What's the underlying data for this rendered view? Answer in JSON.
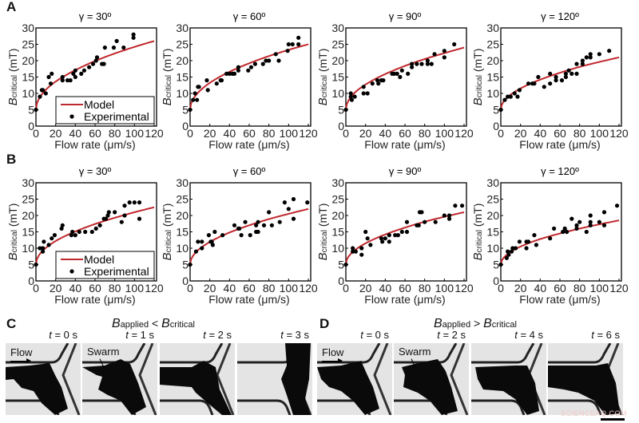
{
  "panel_labels": {
    "A": "A",
    "B": "B",
    "C": "C",
    "D": "D"
  },
  "colors": {
    "model": "#c0282d",
    "experimental": "#000000"
  },
  "chart_data": [
    {
      "panel": "A",
      "type": "scatter+line",
      "title": "γ = 30º",
      "xlabel": "Flow rate (μm/s)",
      "ylabel_main": "B",
      "ylabel_sub": "critical",
      "ylabel_unit": " (mT)",
      "xlim": [
        0,
        120
      ],
      "ylim": [
        0,
        30
      ],
      "xticks": [
        0,
        20,
        40,
        60,
        80,
        100,
        120
      ],
      "yticks": [
        0,
        5,
        10,
        15,
        20,
        25,
        30
      ],
      "grid": false,
      "legend": {
        "position": "bottom-right",
        "entries": [
          "Model",
          "Experimental"
        ]
      },
      "model": {
        "x": [
          0,
          2,
          10,
          20,
          40,
          60,
          80,
          100,
          120
        ],
        "y": [
          5,
          7.7,
          11.1,
          13.6,
          17.1,
          19.9,
          22.2,
          24.2,
          26.0
        ]
      },
      "experimental": [
        [
          0,
          5
        ],
        [
          4,
          9
        ],
        [
          6,
          11
        ],
        [
          7,
          11
        ],
        [
          10,
          10
        ],
        [
          13,
          15
        ],
        [
          15,
          13
        ],
        [
          16,
          16
        ],
        [
          27,
          15
        ],
        [
          27,
          14
        ],
        [
          32,
          14
        ],
        [
          35,
          14
        ],
        [
          38,
          16
        ],
        [
          40,
          17
        ],
        [
          40,
          15
        ],
        [
          46,
          16
        ],
        [
          49,
          17
        ],
        [
          54,
          18
        ],
        [
          58,
          19
        ],
        [
          61,
          20
        ],
        [
          62,
          21
        ],
        [
          67,
          19
        ],
        [
          69,
          19
        ],
        [
          70,
          24
        ],
        [
          79,
          24
        ],
        [
          82,
          26
        ],
        [
          89,
          24
        ],
        [
          99,
          27
        ],
        [
          99,
          28
        ]
      ]
    },
    {
      "panel": "A",
      "type": "scatter+line",
      "title": "γ = 60º",
      "xlabel": "Flow rate (μm/s)",
      "ylabel_main": "B",
      "ylabel_sub": "critical",
      "ylabel_unit": " (mT)",
      "xlim": [
        0,
        120
      ],
      "ylim": [
        0,
        30
      ],
      "xticks": [
        0,
        20,
        40,
        60,
        80,
        100,
        120
      ],
      "yticks": [
        0,
        5,
        10,
        15,
        20,
        25,
        30
      ],
      "grid": false,
      "model": {
        "x": [
          0,
          2,
          10,
          20,
          40,
          60,
          80,
          100,
          120
        ],
        "y": [
          5,
          7.6,
          10.8,
          13.2,
          16.6,
          19.2,
          21.4,
          23.3,
          25.0
        ]
      },
      "experimental": [
        [
          0,
          5
        ],
        [
          3,
          8
        ],
        [
          5,
          10
        ],
        [
          7,
          8
        ],
        [
          8,
          12
        ],
        [
          9,
          12
        ],
        [
          17,
          14
        ],
        [
          18,
          11
        ],
        [
          27,
          13
        ],
        [
          31,
          14
        ],
        [
          32,
          14
        ],
        [
          37,
          16
        ],
        [
          40,
          16
        ],
        [
          43,
          16
        ],
        [
          45,
          16
        ],
        [
          49,
          17
        ],
        [
          49,
          18
        ],
        [
          59,
          17
        ],
        [
          62,
          18
        ],
        [
          66,
          19
        ],
        [
          74,
          19
        ],
        [
          77,
          20
        ],
        [
          80,
          20
        ],
        [
          87,
          22
        ],
        [
          90,
          20
        ],
        [
          99,
          23
        ],
        [
          100,
          25
        ],
        [
          104,
          25
        ],
        [
          110,
          25
        ],
        [
          110,
          27
        ]
      ]
    },
    {
      "panel": "A",
      "type": "scatter+line",
      "title": "γ = 90º",
      "xlabel": "Flow rate (μm/s)",
      "ylabel_main": "B",
      "ylabel_sub": "critical",
      "ylabel_unit": " (mT)",
      "xlim": [
        0,
        120
      ],
      "ylim": [
        0,
        30
      ],
      "xticks": [
        0,
        20,
        40,
        60,
        80,
        100,
        120
      ],
      "yticks": [
        0,
        5,
        10,
        15,
        20,
        25,
        30
      ],
      "grid": false,
      "model": {
        "x": [
          0,
          2,
          10,
          20,
          40,
          60,
          80,
          100,
          120
        ],
        "y": [
          5,
          7.4,
          10.5,
          12.7,
          15.9,
          18.4,
          20.5,
          22.3,
          24.0
        ]
      },
      "experimental": [
        [
          0,
          5
        ],
        [
          5,
          9
        ],
        [
          5,
          10
        ],
        [
          6,
          8
        ],
        [
          9,
          9
        ],
        [
          18,
          12
        ],
        [
          18,
          10
        ],
        [
          22,
          10
        ],
        [
          27,
          13
        ],
        [
          32,
          14
        ],
        [
          33,
          13
        ],
        [
          36,
          14
        ],
        [
          38,
          14
        ],
        [
          47,
          16
        ],
        [
          49,
          16
        ],
        [
          52,
          16
        ],
        [
          55,
          15
        ],
        [
          57,
          17
        ],
        [
          63,
          16
        ],
        [
          67,
          18
        ],
        [
          67,
          19
        ],
        [
          72,
          19
        ],
        [
          77,
          19
        ],
        [
          83,
          20
        ],
        [
          83,
          19
        ],
        [
          87,
          19
        ],
        [
          90,
          22
        ],
        [
          100,
          23
        ],
        [
          100,
          21
        ],
        [
          110,
          25
        ]
      ]
    },
    {
      "panel": "A",
      "type": "scatter+line",
      "title": "γ = 120º",
      "xlabel": "Flow rate (μm/s)",
      "ylabel_main": "B",
      "ylabel_sub": "critical",
      "ylabel_unit": " (mT)",
      "xlim": [
        0,
        120
      ],
      "ylim": [
        0,
        30
      ],
      "xticks": [
        0,
        20,
        40,
        60,
        80,
        100,
        120
      ],
      "yticks": [
        0,
        5,
        10,
        15,
        20,
        25,
        30
      ],
      "grid": false,
      "model": {
        "x": [
          0,
          2,
          10,
          20,
          40,
          60,
          80,
          100,
          120
        ],
        "y": [
          5,
          7.1,
          9.6,
          11.5,
          14.2,
          16.3,
          18.1,
          19.6,
          21.0
        ]
      },
      "experimental": [
        [
          0,
          5
        ],
        [
          4,
          8
        ],
        [
          7,
          9
        ],
        [
          10,
          9
        ],
        [
          14,
          10
        ],
        [
          17,
          9
        ],
        [
          19,
          11
        ],
        [
          28,
          13
        ],
        [
          32,
          13
        ],
        [
          34,
          13
        ],
        [
          38,
          15
        ],
        [
          44,
          12
        ],
        [
          50,
          13
        ],
        [
          50,
          16
        ],
        [
          56,
          14
        ],
        [
          56,
          15
        ],
        [
          62,
          14
        ],
        [
          66,
          15
        ],
        [
          66,
          16
        ],
        [
          69,
          17
        ],
        [
          72,
          16
        ],
        [
          77,
          16
        ],
        [
          77,
          19
        ],
        [
          83,
          19
        ],
        [
          83,
          20
        ],
        [
          87,
          21
        ],
        [
          91,
          21
        ],
        [
          91,
          22
        ],
        [
          100,
          22
        ],
        [
          110,
          23
        ]
      ]
    },
    {
      "panel": "B",
      "type": "scatter+line",
      "title": "γ = 30º",
      "xlabel": "Flow rate (μm/s)",
      "ylabel_main": "B",
      "ylabel_sub": "critical",
      "ylabel_unit": " (mT)",
      "xlim": [
        0,
        120
      ],
      "ylim": [
        0,
        30
      ],
      "xticks": [
        0,
        20,
        40,
        60,
        80,
        100,
        120
      ],
      "yticks": [
        0,
        5,
        10,
        15,
        20,
        25,
        30
      ],
      "grid": false,
      "legend": {
        "position": "bottom-right",
        "entries": [
          "Model",
          "Experimental"
        ]
      },
      "model": {
        "x": [
          0,
          2,
          10,
          20,
          40,
          60,
          80,
          100,
          120
        ],
        "y": [
          5,
          7.3,
          10.1,
          12.2,
          15.1,
          17.4,
          19.3,
          21.0,
          22.5
        ]
      },
      "experimental": [
        [
          0,
          5
        ],
        [
          4,
          10
        ],
        [
          7,
          9
        ],
        [
          7,
          10
        ],
        [
          8,
          12
        ],
        [
          13,
          11
        ],
        [
          16,
          13
        ],
        [
          19,
          14
        ],
        [
          26,
          16
        ],
        [
          27,
          17
        ],
        [
          36,
          14
        ],
        [
          37,
          15
        ],
        [
          40,
          14
        ],
        [
          44,
          15
        ],
        [
          50,
          15
        ],
        [
          57,
          15
        ],
        [
          61,
          16
        ],
        [
          65,
          17
        ],
        [
          69,
          19
        ],
        [
          71,
          19
        ],
        [
          73,
          20
        ],
        [
          74,
          21
        ],
        [
          80,
          21
        ],
        [
          87,
          18
        ],
        [
          90,
          20
        ],
        [
          90,
          23
        ],
        [
          95,
          24
        ],
        [
          100,
          24
        ],
        [
          105,
          24
        ],
        [
          105,
          19
        ]
      ]
    },
    {
      "panel": "B",
      "type": "scatter+line",
      "title": "γ = 60º",
      "xlabel": "Flow rate (μm/s)",
      "ylabel_main": "B",
      "ylabel_sub": "critical",
      "ylabel_unit": " (mT)",
      "xlim": [
        0,
        120
      ],
      "ylim": [
        0,
        30
      ],
      "xticks": [
        0,
        20,
        40,
        60,
        80,
        100,
        120
      ],
      "yticks": [
        0,
        5,
        10,
        15,
        20,
        25,
        30
      ],
      "grid": false,
      "model": {
        "x": [
          0,
          2,
          10,
          20,
          40,
          60,
          80,
          100,
          120
        ],
        "y": [
          5,
          7.2,
          9.9,
          11.9,
          14.8,
          17.0,
          18.9,
          20.5,
          22.0
        ]
      },
      "experimental": [
        [
          0,
          5
        ],
        [
          6,
          9
        ],
        [
          8,
          12
        ],
        [
          12,
          12
        ],
        [
          12,
          10
        ],
        [
          19,
          14
        ],
        [
          21,
          12
        ],
        [
          22,
          12
        ],
        [
          23,
          11
        ],
        [
          25,
          15
        ],
        [
          33,
          14
        ],
        [
          45,
          17
        ],
        [
          49,
          16
        ],
        [
          50,
          16
        ],
        [
          52,
          14
        ],
        [
          56,
          18
        ],
        [
          61,
          14
        ],
        [
          67,
          15
        ],
        [
          67,
          17
        ],
        [
          69,
          18
        ],
        [
          69,
          15
        ],
        [
          75,
          17
        ],
        [
          80,
          21
        ],
        [
          83,
          17
        ],
        [
          91,
          18
        ],
        [
          96,
          24
        ],
        [
          100,
          22
        ],
        [
          105,
          25
        ],
        [
          105,
          19
        ],
        [
          119,
          24
        ]
      ]
    },
    {
      "panel": "B",
      "type": "scatter+line",
      "title": "γ = 90º",
      "xlabel": "Flow rate (μm/s)",
      "ylabel_main": "B",
      "ylabel_sub": "critical",
      "ylabel_unit": " (mT)",
      "xlim": [
        0,
        120
      ],
      "ylim": [
        0,
        30
      ],
      "xticks": [
        0,
        20,
        40,
        60,
        80,
        100,
        120
      ],
      "yticks": [
        0,
        5,
        10,
        15,
        20,
        25,
        30
      ],
      "grid": false,
      "model": {
        "x": [
          0,
          2,
          10,
          20,
          40,
          60,
          80,
          100,
          120
        ],
        "y": [
          5,
          7.1,
          9.6,
          11.5,
          14.2,
          16.3,
          18.1,
          19.6,
          21.0
        ]
      },
      "experimental": [
        [
          0,
          5
        ],
        [
          7,
          10
        ],
        [
          7,
          9
        ],
        [
          10,
          9
        ],
        [
          16,
          10
        ],
        [
          16,
          8
        ],
        [
          20,
          15
        ],
        [
          22,
          13
        ],
        [
          25,
          11
        ],
        [
          36,
          13
        ],
        [
          37,
          12
        ],
        [
          40,
          13
        ],
        [
          44,
          14
        ],
        [
          44,
          12
        ],
        [
          50,
          14
        ],
        [
          53,
          14
        ],
        [
          57,
          15
        ],
        [
          62,
          18
        ],
        [
          62,
          15
        ],
        [
          72,
          17
        ],
        [
          74,
          17
        ],
        [
          75,
          21
        ],
        [
          77,
          21
        ],
        [
          80,
          18
        ],
        [
          91,
          18
        ],
        [
          100,
          20
        ],
        [
          105,
          20
        ],
        [
          105,
          19
        ],
        [
          111,
          23
        ],
        [
          118,
          23
        ]
      ]
    },
    {
      "panel": "B",
      "type": "scatter+line",
      "title": "γ = 120º",
      "xlabel": "Flow rate (μm/s)",
      "ylabel_main": "B",
      "ylabel_sub": "critical",
      "ylabel_unit": " (mT)",
      "xlim": [
        0,
        120
      ],
      "ylim": [
        0,
        30
      ],
      "xticks": [
        0,
        20,
        40,
        60,
        80,
        100,
        120
      ],
      "yticks": [
        0,
        5,
        10,
        15,
        20,
        25,
        30
      ],
      "grid": false,
      "model": {
        "x": [
          0,
          2,
          10,
          20,
          40,
          60,
          80,
          100,
          120
        ],
        "y": [
          5,
          6.7,
          8.9,
          10.5,
          12.8,
          14.5,
          16.0,
          17.3,
          18.5
        ]
      },
      "experimental": [
        [
          0,
          5
        ],
        [
          6,
          7
        ],
        [
          7,
          9
        ],
        [
          8,
          8
        ],
        [
          11,
          9
        ],
        [
          12,
          10
        ],
        [
          15,
          10
        ],
        [
          19,
          12
        ],
        [
          26,
          12
        ],
        [
          26,
          10
        ],
        [
          28,
          12
        ],
        [
          34,
          14
        ],
        [
          36,
          11
        ],
        [
          50,
          13
        ],
        [
          54,
          16
        ],
        [
          63,
          15
        ],
        [
          65,
          16
        ],
        [
          67,
          15
        ],
        [
          72,
          19
        ],
        [
          77,
          17
        ],
        [
          77,
          16
        ],
        [
          80,
          18
        ],
        [
          87,
          15
        ],
        [
          91,
          20
        ],
        [
          91,
          18
        ],
        [
          91,
          17
        ],
        [
          100,
          18
        ],
        [
          105,
          21
        ],
        [
          105,
          17
        ],
        [
          118,
          23
        ]
      ]
    }
  ],
  "panel_C": {
    "title_main_1": "B",
    "title_sub_1": "applied",
    "title_op": " < ",
    "title_main_2": "B",
    "title_sub_2": "critical",
    "times": [
      "0 s",
      "1 s",
      "2 s",
      "3 s"
    ],
    "time_var": "t",
    "flow_label": "Flow",
    "swarm_label": "Swarm"
  },
  "panel_D": {
    "title_main_1": "B",
    "title_sub_1": "applied",
    "title_op": " > ",
    "title_main_2": "B",
    "title_sub_2": "critical",
    "times": [
      "0 s",
      "2 s",
      "4 s",
      "6 s"
    ],
    "time_var": "t",
    "flow_label": "Flow",
    "swarm_label": "Swarm"
  },
  "watermark": "SCIENCEAQ.COM"
}
